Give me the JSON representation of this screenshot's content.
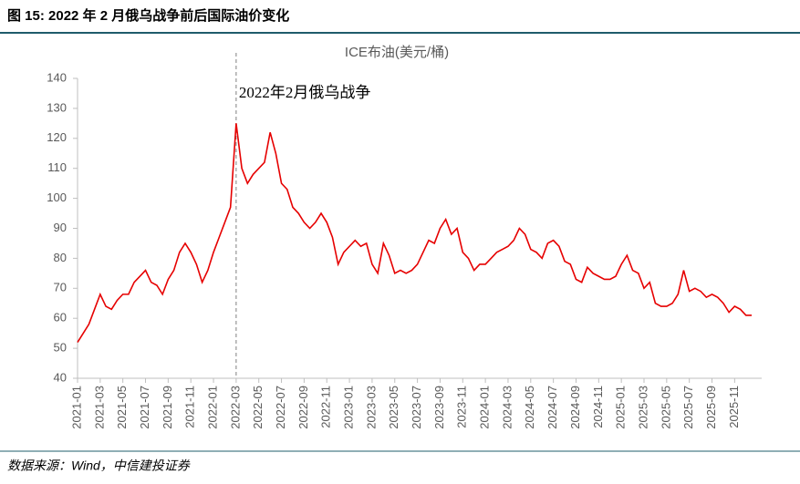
{
  "chart_data": {
    "type": "line",
    "title": "图 15: 2022 年 2 月俄乌战争前后国际油价变化",
    "source": "数据来源：Wind，中信建投证券",
    "annotation": {
      "text": "2022年2月俄乌战争",
      "x": "2022-03"
    },
    "categories": [
      "2021-01",
      null,
      null,
      null,
      "2021-03",
      null,
      null,
      null,
      "2021-05",
      null,
      null,
      null,
      "2021-07",
      null,
      null,
      null,
      "2021-09",
      null,
      null,
      null,
      "2021-11",
      null,
      null,
      null,
      "2022-01",
      null,
      null,
      null,
      "2022-03",
      null,
      null,
      null,
      "2022-05",
      null,
      null,
      null,
      "2022-07",
      null,
      null,
      null,
      "2022-09",
      null,
      null,
      null,
      "2022-11",
      null,
      null,
      null,
      "2023-01",
      null,
      null,
      null,
      "2023-03",
      null,
      null,
      null,
      "2023-05",
      null,
      null,
      null,
      "2023-07",
      null,
      null,
      null,
      "2023-09",
      null,
      null,
      null,
      "2023-11",
      null,
      null,
      null,
      "2024-01",
      null,
      null,
      null,
      "2024-03",
      null,
      null,
      null,
      "2024-05",
      null,
      null,
      null,
      "2024-07",
      null,
      null,
      null,
      "2024-09",
      null,
      null,
      null,
      "2024-11",
      null,
      null,
      null,
      "2025-01",
      null,
      null,
      null,
      "2025-03",
      null,
      null,
      null,
      "2025-05",
      null,
      null,
      null,
      "2025-07",
      null,
      null,
      null,
      "2025-09",
      null,
      null,
      null,
      "2025-11",
      null,
      null,
      null
    ],
    "series": [
      {
        "name": "ICE布油(美元/桶)",
        "color": "#e60000",
        "values": [
          52,
          55,
          58,
          63,
          68,
          64,
          63,
          66,
          68,
          68,
          72,
          74,
          76,
          72,
          71,
          68,
          73,
          76,
          82,
          85,
          82,
          78,
          72,
          76,
          82,
          87,
          92,
          97,
          125,
          110,
          105,
          108,
          110,
          112,
          122,
          115,
          105,
          103,
          97,
          95,
          92,
          90,
          92,
          95,
          92,
          87,
          78,
          82,
          84,
          86,
          84,
          85,
          78,
          75,
          85,
          81,
          75,
          76,
          75,
          76,
          78,
          82,
          86,
          85,
          90,
          93,
          88,
          90,
          82,
          80,
          76,
          78,
          78,
          80,
          82,
          83,
          84,
          86,
          90,
          88,
          83,
          82,
          80,
          85,
          86,
          84,
          79,
          78,
          73,
          72,
          77,
          75,
          74,
          73,
          73,
          74,
          78,
          81,
          76,
          75,
          70,
          72,
          65,
          64,
          64,
          65,
          68,
          76,
          69,
          70,
          69,
          67,
          68,
          67,
          65,
          62,
          64,
          63,
          61,
          61
        ]
      }
    ],
    "ylim": [
      40,
      140
    ],
    "yticks": [
      40,
      50,
      60,
      70,
      80,
      90,
      100,
      110,
      120,
      130,
      140
    ]
  }
}
